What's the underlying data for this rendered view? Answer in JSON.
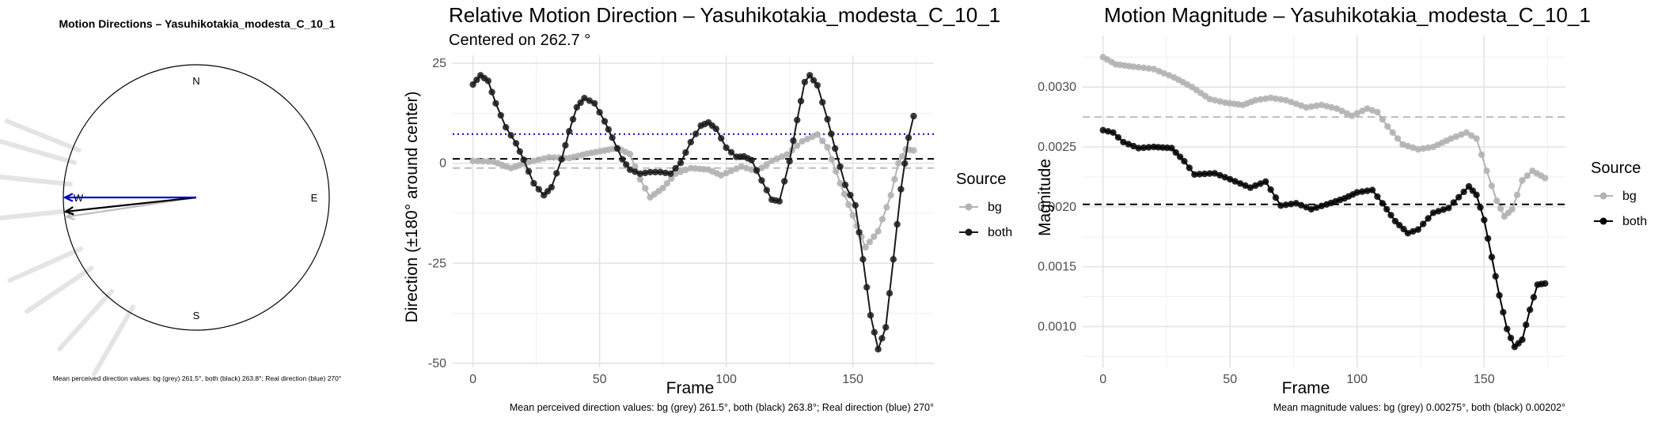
{
  "chart_data": [
    {
      "type": "compass",
      "title": "Motion Directions – Yasuhikotakia_modesta_C_10_1",
      "cardinals": [
        "N",
        "E",
        "S",
        "W"
      ],
      "caption": "Mean perceived direction values: bg (grey) 261.5°, both (black) 263.8°; Real direction (blue) 270°",
      "arrows": [
        {
          "name": "bg",
          "direction_deg": 261.5,
          "color": "#bdbdbd"
        },
        {
          "name": "both",
          "direction_deg": 263.8,
          "color": "#000000"
        },
        {
          "name": "real",
          "direction_deg": 270,
          "color": "#0000cc"
        }
      ],
      "faint_bg_directions_deg": [
        292,
        286,
        276,
        264,
        246,
        236,
        222,
        210
      ],
      "colors": {
        "bg": "#d9d9d9",
        "both": "#000000",
        "real": "#0000cc"
      }
    },
    {
      "type": "line",
      "title": "Relative Motion Direction – Yasuhikotakia_modesta_C_10_1",
      "subtitle": "Centered on  262.7 °",
      "xlabel": "Frame",
      "ylabel": "Direction (±180° around center)",
      "xlim": [
        -8,
        182
      ],
      "ylim": [
        -51,
        27
      ],
      "xticks": [
        0,
        50,
        100,
        150
      ],
      "yticks": [
        -50,
        -25,
        0,
        25
      ],
      "grid": true,
      "legend": {
        "title": "Source",
        "position": "right",
        "entries": [
          "bg",
          "both"
        ]
      },
      "hlines": [
        {
          "y": 7.3,
          "color": "#0000cc",
          "style": "dotted"
        },
        {
          "y": 1.1,
          "color": "#000000",
          "style": "dashed"
        },
        {
          "y": -1.2,
          "color": "#bdbdbd",
          "style": "dashed"
        }
      ],
      "caption": "Mean perceived direction values: bg (grey) 261.5°, both (black) 263.8°; Real direction (blue) 270°",
      "series": [
        {
          "name": "bg",
          "color": "#b3b3b3",
          "points": [
            [
              0,
              0.6
            ],
            [
              8,
              0.4
            ],
            [
              15,
              -1.2
            ],
            [
              22,
              0.3
            ],
            [
              30,
              1.5
            ],
            [
              38,
              1.3
            ],
            [
              45,
              2.4
            ],
            [
              52,
              3.2
            ],
            [
              57,
              3.8
            ],
            [
              62,
              2.3
            ],
            [
              66,
              -4
            ],
            [
              70,
              -8.5
            ],
            [
              75,
              -6.2
            ],
            [
              80,
              -2.6
            ],
            [
              86,
              -1.2
            ],
            [
              93,
              -1.6
            ],
            [
              98,
              -3
            ],
            [
              106,
              -0.8
            ],
            [
              112,
              -2
            ],
            [
              118,
              0.6
            ],
            [
              124,
              2.2
            ],
            [
              130,
              5.5
            ],
            [
              136,
              7.2
            ],
            [
              140,
              4
            ],
            [
              145,
              -5
            ],
            [
              150,
              -13
            ],
            [
              155,
              -21
            ],
            [
              160,
              -17
            ],
            [
              165,
              -8
            ],
            [
              168,
              0
            ],
            [
              171,
              3.5
            ],
            [
              174,
              3.2
            ]
          ]
        },
        {
          "name": "both",
          "color": "#1a1a1a",
          "points": [
            [
              0,
              19.7
            ],
            [
              3,
              22
            ],
            [
              6,
              20.6
            ],
            [
              9,
              15
            ],
            [
              13,
              9
            ],
            [
              17,
              5
            ],
            [
              20,
              0.9
            ],
            [
              24,
              -5
            ],
            [
              28,
              -8
            ],
            [
              31,
              -6
            ],
            [
              35,
              1
            ],
            [
              38,
              8
            ],
            [
              41,
              14
            ],
            [
              44,
              16.3
            ],
            [
              48,
              15
            ],
            [
              52,
              10.5
            ],
            [
              55,
              6.4
            ],
            [
              59,
              1
            ],
            [
              62,
              -1.6
            ],
            [
              66,
              -2.6
            ],
            [
              70,
              -2.2
            ],
            [
              74,
              -2.2
            ],
            [
              78,
              -2.6
            ],
            [
              82,
              0.1
            ],
            [
              86,
              5.3
            ],
            [
              90,
              9.4
            ],
            [
              93,
              10.2
            ],
            [
              96,
              8.6
            ],
            [
              100,
              3.9
            ],
            [
              104,
              1.6
            ],
            [
              107,
              1.7
            ],
            [
              110,
              0.8
            ],
            [
              114,
              -4.3
            ],
            [
              118,
              -9.1
            ],
            [
              121,
              -9.5
            ],
            [
              125,
              0.5
            ],
            [
              128,
              10.8
            ],
            [
              131,
              20.3
            ],
            [
              133,
              22
            ],
            [
              136,
              19.5
            ],
            [
              140,
              11
            ],
            [
              143,
              3.7
            ],
            [
              147,
              -5.4
            ],
            [
              151,
              -10.5
            ],
            [
              154,
              -24
            ],
            [
              157,
              -38
            ],
            [
              160,
              -46.5
            ],
            [
              163,
              -41
            ],
            [
              166,
              -24
            ],
            [
              169,
              -6.5
            ],
            [
              172,
              6.4
            ],
            [
              174,
              11.8
            ]
          ]
        }
      ]
    },
    {
      "type": "line",
      "title": "Motion Magnitude – Yasuhikotakia_modesta_C_10_1",
      "xlabel": "Frame",
      "ylabel": "Magnitude",
      "xlim": [
        -8,
        182
      ],
      "ylim": [
        0.00066,
        0.00343
      ],
      "xticks": [
        0,
        50,
        100,
        150
      ],
      "yticks": [
        0.001,
        0.0015,
        0.002,
        0.0025,
        0.003
      ],
      "grid": true,
      "legend": {
        "title": "Source",
        "position": "right",
        "entries": [
          "bg",
          "both"
        ]
      },
      "hlines": [
        {
          "y": 0.00275,
          "color": "#bdbdbd",
          "style": "dashed"
        },
        {
          "y": 0.00202,
          "color": "#000000",
          "style": "dashed"
        }
      ],
      "caption": "Mean magnitude values: bg (grey) 0.00275°, both (black) 0.00202°",
      "series": [
        {
          "name": "bg",
          "color": "#b3b3b3",
          "points": [
            [
              0,
              0.00325
            ],
            [
              5,
              0.00319
            ],
            [
              12,
              0.00317
            ],
            [
              20,
              0.00315
            ],
            [
              28,
              0.00308
            ],
            [
              35,
              0.003
            ],
            [
              42,
              0.0029
            ],
            [
              48,
              0.00287
            ],
            [
              55,
              0.00285
            ],
            [
              60,
              0.00289
            ],
            [
              66,
              0.00291
            ],
            [
              72,
              0.00289
            ],
            [
              80,
              0.00283
            ],
            [
              86,
              0.00285
            ],
            [
              92,
              0.00282
            ],
            [
              98,
              0.00276
            ],
            [
              104,
              0.00282
            ],
            [
              108,
              0.00279
            ],
            [
              112,
              0.00267
            ],
            [
              118,
              0.00252
            ],
            [
              124,
              0.00248
            ],
            [
              130,
              0.0025
            ],
            [
              137,
              0.00257
            ],
            [
              143,
              0.00262
            ],
            [
              147,
              0.00257
            ],
            [
              151,
              0.0023
            ],
            [
              155,
              0.00205
            ],
            [
              158,
              0.00192
            ],
            [
              161,
              0.00198
            ],
            [
              165,
              0.00222
            ],
            [
              169,
              0.0023
            ],
            [
              174,
              0.00224
            ]
          ]
        },
        {
          "name": "both",
          "color": "#000000",
          "points": [
            [
              0,
              0.00264
            ],
            [
              4,
              0.00262
            ],
            [
              8,
              0.00254
            ],
            [
              14,
              0.00249
            ],
            [
              20,
              0.0025
            ],
            [
              27,
              0.00249
            ],
            [
              32,
              0.00238
            ],
            [
              36,
              0.00227
            ],
            [
              44,
              0.00228
            ],
            [
              50,
              0.00223
            ],
            [
              58,
              0.00216
            ],
            [
              64,
              0.00221
            ],
            [
              70,
              0.00201
            ],
            [
              76,
              0.00203
            ],
            [
              82,
              0.00198
            ],
            [
              88,
              0.00202
            ],
            [
              95,
              0.00207
            ],
            [
              100,
              0.00212
            ],
            [
              106,
              0.00214
            ],
            [
              110,
              0.00203
            ],
            [
              115,
              0.00188
            ],
            [
              120,
              0.00178
            ],
            [
              124,
              0.00181
            ],
            [
              130,
              0.00195
            ],
            [
              136,
              0.00199
            ],
            [
              140,
              0.00208
            ],
            [
              144,
              0.00217
            ],
            [
              147,
              0.0021
            ],
            [
              150,
              0.00189
            ],
            [
              153,
              0.00158
            ],
            [
              156,
              0.00126
            ],
            [
              159,
              0.00098
            ],
            [
              162,
              0.00083
            ],
            [
              165,
              0.00089
            ],
            [
              168,
              0.00114
            ],
            [
              171,
              0.00135
            ],
            [
              174,
              0.00136
            ]
          ]
        }
      ]
    }
  ]
}
